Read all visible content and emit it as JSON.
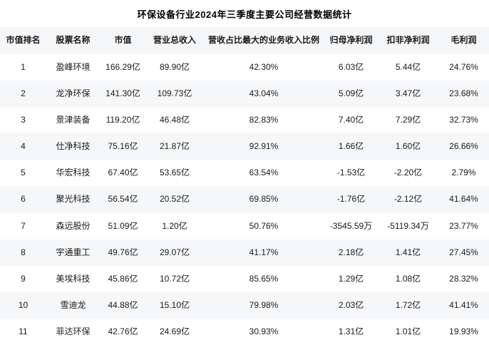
{
  "title": "环保设备行业2024年三季度主要公司经营数据统计",
  "colors": {
    "header_bg": "#f5f6f8",
    "stripe_bg": "#f6f7f9",
    "text": "#1a1a1a",
    "title_text": "#000000"
  },
  "chart_data": {
    "type": "table",
    "title": "环保设备行业2024年三季度主要公司经营数据统计",
    "columns": [
      "市值排名",
      "股票名称",
      "市值",
      "营业总收入",
      "营收占比最大的业务收入比例",
      "归母净利润",
      "扣非净利润",
      "毛利润"
    ],
    "rows": [
      [
        "1",
        "盈峰环境",
        "166.29亿",
        "89.90亿",
        "42.30%",
        "6.03亿",
        "5.44亿",
        "24.76%"
      ],
      [
        "2",
        "龙净环保",
        "141.30亿",
        "109.73亿",
        "43.04%",
        "5.09亿",
        "3.47亿",
        "23.68%"
      ],
      [
        "3",
        "景津装备",
        "119.20亿",
        "46.48亿",
        "82.83%",
        "7.40亿",
        "7.29亿",
        "32.73%"
      ],
      [
        "4",
        "仕净科技",
        "75.16亿",
        "21.87亿",
        "92.91%",
        "1.66亿",
        "1.60亿",
        "26.66%"
      ],
      [
        "5",
        "华宏科技",
        "67.40亿",
        "53.65亿",
        "63.54%",
        "-1.53亿",
        "-2.20亿",
        "2.79%"
      ],
      [
        "6",
        "聚光科技",
        "56.54亿",
        "20.52亿",
        "69.85%",
        "-1.76亿",
        "-2.12亿",
        "41.64%"
      ],
      [
        "7",
        "森远股份",
        "51.09亿",
        "1.20亿",
        "50.76%",
        "-3545.59万",
        "-5119.34万",
        "23.77%"
      ],
      [
        "8",
        "宇通重工",
        "49.76亿",
        "29.07亿",
        "41.17%",
        "2.18亿",
        "1.41亿",
        "27.45%"
      ],
      [
        "9",
        "美埃科技",
        "45.86亿",
        "10.72亿",
        "85.65%",
        "1.29亿",
        "1.08亿",
        "28.32%"
      ],
      [
        "10",
        "雪迪龙",
        "44.88亿",
        "15.10亿",
        "79.98%",
        "2.03亿",
        "1.72亿",
        "41.41%"
      ],
      [
        "11",
        "菲达环保",
        "42.76亿",
        "24.69亿",
        "30.93%",
        "1.31亿",
        "1.01亿",
        "19.93%"
      ]
    ]
  }
}
